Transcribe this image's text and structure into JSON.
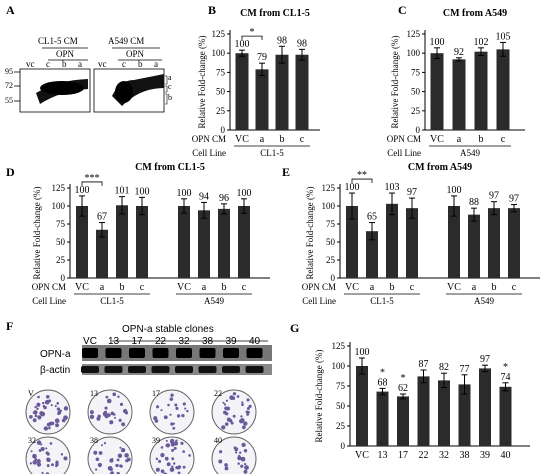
{
  "panels": {
    "A": {
      "letter": "A",
      "blots": [
        {
          "title": "CL1-5 CM",
          "opn_label": "OPN",
          "lanes": [
            "vc",
            "c",
            "b",
            "a"
          ]
        },
        {
          "title": "A549 CM",
          "opn_label": "OPN",
          "lanes": [
            "vc",
            "c",
            "b",
            "a"
          ]
        }
      ],
      "markers": [
        "95",
        "72",
        "55"
      ],
      "side_labels": [
        "a",
        "c",
        "b"
      ]
    },
    "F": {
      "letter": "F",
      "header": "OPN-a stable clones",
      "lanes": [
        "VC",
        "13",
        "17",
        "22",
        "32",
        "38",
        "39",
        "40"
      ],
      "rows": [
        "OPN-a",
        "β-actin"
      ],
      "dish_labels": [
        "V",
        "13",
        "17",
        "22",
        "32",
        "38",
        "39",
        "40"
      ]
    }
  },
  "common": {
    "ylabel": "Relative Fold-change (%)",
    "opn_cm": "OPN CM",
    "cell_line": "Cell Line"
  },
  "chart_data": [
    {
      "id": "B",
      "letter": "B",
      "type": "bar",
      "title": "CM from CL1-5",
      "categories": [
        "VC",
        "a",
        "b",
        "c"
      ],
      "values": [
        100,
        79,
        98,
        98
      ],
      "errors": [
        4,
        8,
        11,
        7
      ],
      "labels": [
        "100",
        "79",
        "98",
        "98"
      ],
      "group_labels": [
        "CL1-5"
      ],
      "significance": [
        {
          "from": 0,
          "to": 1,
          "mark": "*"
        }
      ],
      "ylim": [
        0,
        125
      ],
      "yticks": [
        0,
        25,
        50,
        75,
        100,
        125
      ],
      "ylabel": "Relative Fold-change (%)"
    },
    {
      "id": "C",
      "letter": "C",
      "type": "bar",
      "title": "CM from A549",
      "categories": [
        "VC",
        "a",
        "b",
        "c"
      ],
      "values": [
        100,
        92,
        102,
        105
      ],
      "errors": [
        7,
        2,
        5,
        9
      ],
      "labels": [
        "100",
        "92",
        "102",
        "105"
      ],
      "group_labels": [
        "A549"
      ],
      "significance": [],
      "ylim": [
        0,
        125
      ],
      "yticks": [
        0,
        25,
        50,
        75,
        100,
        125
      ],
      "ylabel": "Relative Fold-change (%)"
    },
    {
      "id": "D",
      "letter": "D",
      "type": "bar",
      "title": "CM from CL1-5",
      "categories": [
        "VC",
        "a",
        "b",
        "c",
        "VC",
        "a",
        "b",
        "c"
      ],
      "values": [
        100,
        67,
        101,
        100,
        100,
        94,
        96,
        100
      ],
      "errors": [
        14,
        10,
        12,
        12,
        10,
        11,
        7,
        10
      ],
      "labels": [
        "100",
        "67",
        "101",
        "100",
        "100",
        "94",
        "96",
        "100"
      ],
      "group_labels": [
        "CL1-5",
        "A549"
      ],
      "significance": [
        {
          "from": 0,
          "to": 1,
          "mark": "***"
        }
      ],
      "ylim": [
        0,
        125
      ],
      "yticks": [
        0,
        25,
        50,
        75,
        100,
        125
      ],
      "ylabel": "Relative Fold-change (%)"
    },
    {
      "id": "E",
      "letter": "E",
      "type": "bar",
      "title": "CM from A549",
      "categories": [
        "VC",
        "a",
        "b",
        "c",
        "VC",
        "a",
        "b",
        "c"
      ],
      "values": [
        100,
        65,
        103,
        97,
        100,
        88,
        97,
        97
      ],
      "errors": [
        18,
        12,
        15,
        14,
        14,
        9,
        9,
        5
      ],
      "labels": [
        "100",
        "65",
        "103",
        "97",
        "100",
        "88",
        "97",
        "97"
      ],
      "group_labels": [
        "CL1-5",
        "A549"
      ],
      "significance": [
        {
          "from": 0,
          "to": 1,
          "mark": "**"
        }
      ],
      "ylim": [
        0,
        125
      ],
      "yticks": [
        0,
        25,
        50,
        75,
        100,
        125
      ],
      "ylabel": "Relative Fold-change (%)"
    },
    {
      "id": "G",
      "letter": "G",
      "type": "bar",
      "title": "",
      "categories": [
        "VC",
        "13",
        "17",
        "22",
        "32",
        "38",
        "39",
        "40"
      ],
      "values": [
        100,
        68,
        62,
        87,
        82,
        77,
        97,
        74
      ],
      "errors": [
        10,
        4,
        3,
        8,
        9,
        12,
        4,
        5
      ],
      "labels": [
        "100",
        "68",
        "62",
        "87",
        "82",
        "77",
        "97",
        "74"
      ],
      "stars": [
        "",
        "*",
        "*",
        "",
        "",
        "",
        "",
        "*"
      ],
      "group_labels": [],
      "significance": [],
      "ylim": [
        0,
        125
      ],
      "yticks": [
        0,
        25,
        50,
        75,
        100,
        125
      ],
      "ylabel": "Relative Fold-change (%)"
    }
  ]
}
